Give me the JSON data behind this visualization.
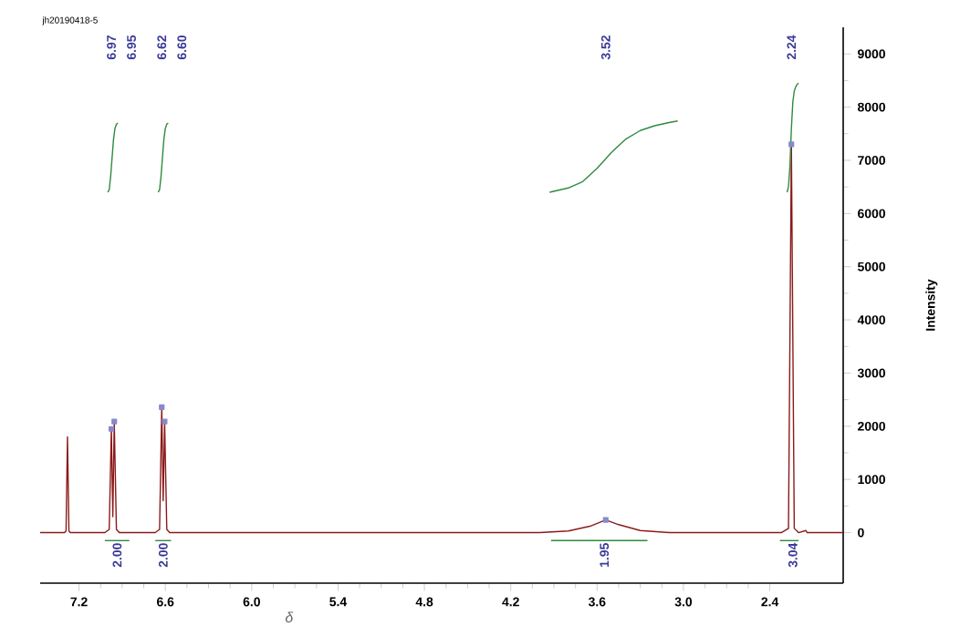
{
  "chart_data": {
    "type": "line",
    "xlabel": "δ",
    "ylabel": "Intensity",
    "xlim": [
      7.47,
      1.89
    ],
    "ylim": [
      -950,
      9500
    ],
    "xticks": [
      7.2,
      6.6,
      {
        "value": 6,
        "label": "6.0"
      },
      5.4,
      4.8,
      4.2,
      3.6,
      {
        "value": 3,
        "label": "3.0"
      },
      2.4
    ],
    "yticks": [
      0,
      1000,
      2000,
      3000,
      4000,
      5000,
      6000,
      7000,
      8000,
      9000
    ],
    "grid": false,
    "marker": "none",
    "line_style": "solid",
    "series": [
      {
        "color": "#8b1a1a",
        "x": [
          7.47,
          7.3,
          7.29,
          7.28,
          7.27,
          7.26,
          7.02,
          6.99,
          6.975,
          6.965,
          6.955,
          6.94,
          6.92,
          6.67,
          6.64,
          6.625,
          6.615,
          6.605,
          6.59,
          6.57,
          4.0,
          3.8,
          3.65,
          3.54,
          3.45,
          3.3,
          3.1,
          2.32,
          2.27,
          2.25,
          2.23,
          2.2,
          2.15,
          2.14,
          1.89
        ],
        "values": [
          0,
          0,
          30,
          1800,
          30,
          0,
          0,
          60,
          1950,
          300,
          2090,
          60,
          0,
          0,
          60,
          2360,
          600,
          2090,
          60,
          0,
          0,
          30,
          120,
          240,
          150,
          40,
          0,
          0,
          80,
          7300,
          80,
          0,
          40,
          0,
          0
        ]
      },
      {
        "color": "#2e8b3e",
        "x": [
          7.0,
          6.99,
          6.98,
          6.97,
          6.96,
          6.95,
          6.94,
          6.93
        ],
        "values": [
          6400,
          6450,
          6700,
          7050,
          7400,
          7600,
          7680,
          7700
        ]
      },
      {
        "color": "#2e8b3e",
        "x": [
          6.65,
          6.64,
          6.63,
          6.62,
          6.61,
          6.6,
          6.59,
          6.58
        ],
        "values": [
          6400,
          6450,
          6700,
          7050,
          7400,
          7600,
          7680,
          7700
        ]
      },
      {
        "color": "#2e8b3e",
        "x": [
          3.93,
          3.8,
          3.7,
          3.6,
          3.5,
          3.4,
          3.3,
          3.2,
          3.1,
          3.04
        ],
        "values": [
          6400,
          6480,
          6600,
          6850,
          7150,
          7400,
          7560,
          7650,
          7710,
          7740
        ]
      },
      {
        "color": "#2e8b3e",
        "x": [
          2.28,
          2.27,
          2.26,
          2.25,
          2.24,
          2.23,
          2.22,
          2.21,
          2.2
        ],
        "values": [
          6400,
          6500,
          6900,
          7600,
          8100,
          8300,
          8380,
          8430,
          8450
        ]
      },
      {
        "color": "#2e8b3e",
        "x": [
          7.02,
          6.85
        ],
        "values": [
          -150,
          -150
        ]
      },
      {
        "color": "#2e8b3e",
        "x": [
          6.67,
          6.56
        ],
        "values": [
          -150,
          -150
        ]
      },
      {
        "color": "#2e8b3e",
        "x": [
          3.92,
          3.25
        ],
        "values": [
          -150,
          -150
        ]
      },
      {
        "color": "#2e8b3e",
        "x": [
          2.33,
          2.2
        ],
        "values": [
          -150,
          -150
        ]
      },
      {
        "type": "scatter",
        "marker": "square",
        "color": "#8888cc",
        "x": [
          6.975,
          6.955,
          6.625,
          6.605,
          3.54,
          2.25
        ],
        "values": [
          1950,
          2090,
          2360,
          2090,
          240,
          7300
        ]
      }
    ],
    "annotations": [
      "jh20190418-5",
      "6.97",
      "6.95",
      "6.62",
      "6.60",
      "3.52",
      "2.24",
      {
        "text": "2.00",
        "x": 6.935,
        "y": -150
      },
      {
        "text": "2.00",
        "x": 6.615,
        "y": -150
      },
      {
        "text": "1.95",
        "x": 3.55,
        "y": -150
      },
      {
        "text": "3.04",
        "x": 2.24,
        "y": -150
      }
    ]
  }
}
